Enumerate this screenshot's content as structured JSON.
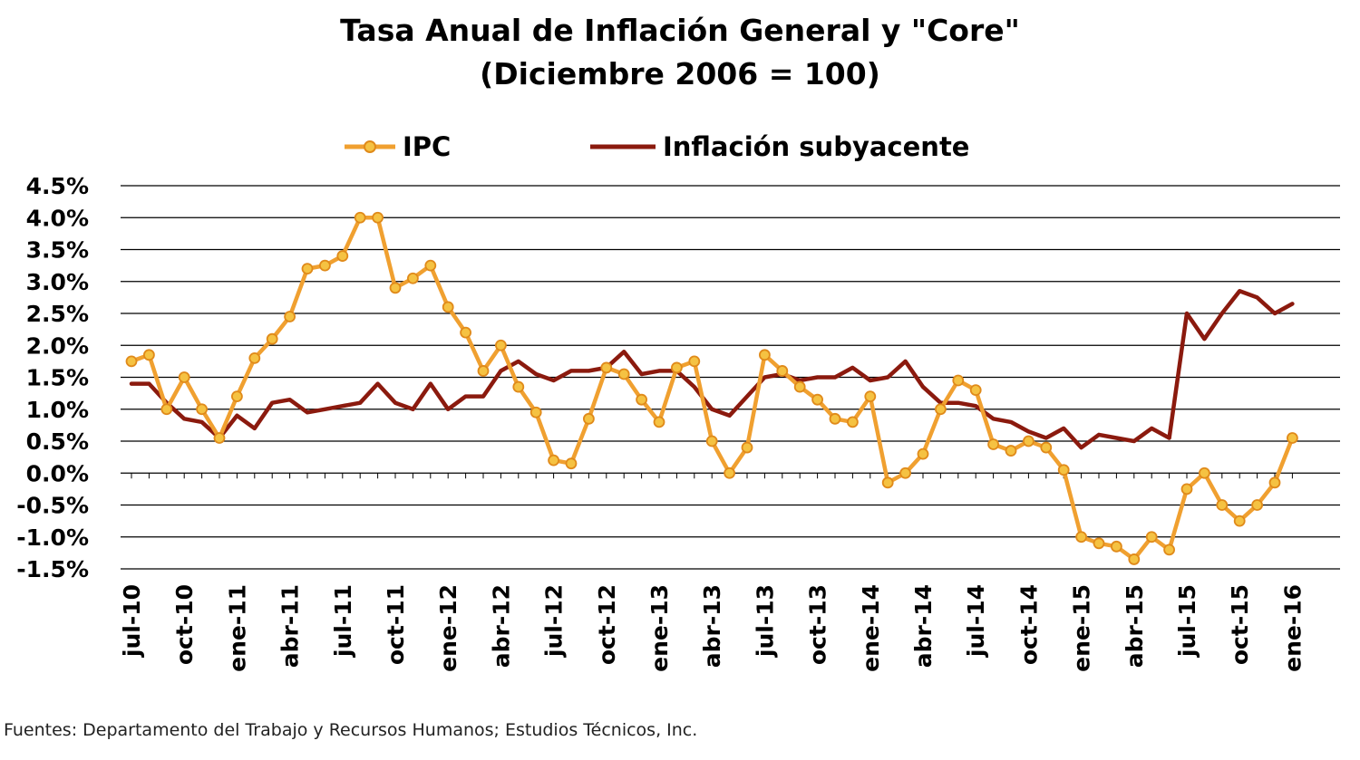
{
  "chart_data": {
    "type": "line",
    "title": "Tasa Anual de Inflación General y \"Core\"",
    "subtitle": "(Diciembre 2006 = 100)",
    "ylim": [
      -1.5,
      4.5
    ],
    "y_ticks": [
      "4.5%",
      "4.0%",
      "3.5%",
      "3.0%",
      "2.5%",
      "2.0%",
      "1.5%",
      "1.0%",
      "0.5%",
      "0.0%",
      "-0.5%",
      "-1.0%",
      "-1.5%"
    ],
    "y_tick_values": [
      4.5,
      4.0,
      3.5,
      3.0,
      2.5,
      2.0,
      1.5,
      1.0,
      0.5,
      0.0,
      -0.5,
      -1.0,
      -1.5
    ],
    "x_tick_labels": [
      "jul-10",
      "oct-10",
      "ene-11",
      "abr-11",
      "jul-11",
      "oct-11",
      "ene-12",
      "abr-12",
      "jul-12",
      "oct-12",
      "ene-13",
      "abr-13",
      "jul-13",
      "oct-13",
      "ene-14",
      "abr-14",
      "jul-14",
      "oct-14",
      "ene-15",
      "abr-15",
      "jul-15",
      "oct-15",
      "ene-16"
    ],
    "x_tick_every": 3,
    "grid": true,
    "legend": "top",
    "series": [
      {
        "name": "IPC",
        "color": "#f0a030",
        "marker": "circle",
        "values": [
          1.75,
          1.85,
          1.0,
          1.5,
          1.0,
          0.55,
          1.2,
          1.8,
          2.1,
          2.45,
          3.2,
          3.25,
          3.4,
          4.0,
          4.0,
          2.9,
          3.05,
          3.25,
          2.6,
          2.2,
          1.6,
          2.0,
          1.35,
          0.95,
          0.2,
          0.15,
          0.85,
          1.65,
          1.55,
          1.15,
          0.8,
          1.65,
          1.75,
          0.5,
          0.0,
          0.4,
          1.85,
          1.6,
          1.35,
          1.15,
          0.85,
          0.8,
          1.2,
          -0.15,
          0.0,
          0.3,
          1.0,
          1.45,
          1.3,
          0.45,
          0.35,
          0.5,
          0.4,
          0.05,
          -1.0,
          -1.1,
          -1.15,
          -1.35,
          -1.0,
          -1.2,
          -0.25,
          0.0,
          -0.5,
          -0.75,
          -0.5,
          -0.15,
          0.55
        ]
      },
      {
        "name": "Inflación subyacente",
        "color": "#8b1a0e",
        "marker": "none",
        "values": [
          1.4,
          1.4,
          1.1,
          0.85,
          0.8,
          0.55,
          0.9,
          0.7,
          1.1,
          1.15,
          0.95,
          1.0,
          1.05,
          1.1,
          1.4,
          1.1,
          1.0,
          1.4,
          1.0,
          1.2,
          1.2,
          1.6,
          1.75,
          1.55,
          1.45,
          1.6,
          1.6,
          1.65,
          1.9,
          1.55,
          1.6,
          1.6,
          1.35,
          1.0,
          0.9,
          1.2,
          1.5,
          1.55,
          1.45,
          1.5,
          1.5,
          1.65,
          1.45,
          1.5,
          1.75,
          1.35,
          1.1,
          1.1,
          1.05,
          0.85,
          0.8,
          0.65,
          0.55,
          0.7,
          0.4,
          0.6,
          0.55,
          0.5,
          0.7,
          0.55,
          2.5,
          2.1,
          2.5,
          2.85,
          2.75,
          2.5,
          2.65
        ]
      }
    ]
  },
  "legend": {
    "ipc_label": "IPC",
    "core_label": "Inflación subyacente"
  },
  "footer": "Fuentes: Departamento del Trabajo y Recursos Humanos; Estudios Técnicos, Inc."
}
